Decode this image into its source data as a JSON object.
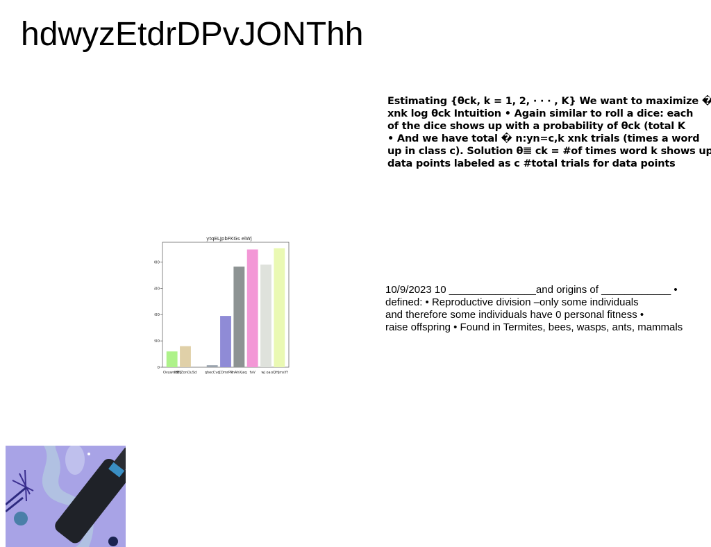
{
  "page": {
    "title": "hdwyzEtdrDPvJONThh"
  },
  "paragraph1": {
    "lines": [
      "Estimating {θck, k = 1, 2, · · · , K} We want to maximize �",
      "xnk log θck Intuition • Again similar to roll a dice: each",
      "of the dice shows up with a probability of θck (total K",
      "• And we have total � n:yn=c,k xnk trials (times a word",
      "up in class c). Solution θ𝌆 ck = #of times word k shows up",
      "data points labeled as c #total trials for data points"
    ]
  },
  "paragraph2": {
    "lines": [
      "10/9/2023 10 _______________and origins of ____________ •",
      "defined: • Reproductive division –only some individuals",
      "and therefore some individuals have 0 personal fitness •",
      "raise offspring • Found in Termites, bees, wasps, ants, mammals"
    ]
  },
  "chart_data": {
    "type": "bar",
    "title": "ytqELJpbFKGs elWj",
    "categories": [
      "Ovywndbt",
      "IHFjZonOuSd",
      "",
      "qhecCvq",
      "CDmrPR",
      "mAhXjeq",
      "fvV",
      "wj oa",
      "oQHjmsYf"
    ],
    "values": [
      120,
      160,
      0,
      15,
      390,
      765,
      895,
      780,
      905
    ],
    "colors": [
      "#aef28a",
      "#e0d0a8",
      "#cccccc",
      "#9aa3ad",
      "#8f8bd6",
      "#8d9393",
      "#f397d6",
      "#dfe2dc",
      "#eaf9b3"
    ],
    "ylim": [
      0,
      950
    ],
    "yticks": [
      0,
      200,
      400,
      600,
      800
    ]
  },
  "photo": {
    "icon": "party-celebration-photo",
    "colors": {
      "background": "#a8a3e6",
      "ribbon": "#b3c7e0",
      "bottle": "#1f2228",
      "label": "#3a8fc4",
      "ornament": "#4a7fa8"
    }
  }
}
